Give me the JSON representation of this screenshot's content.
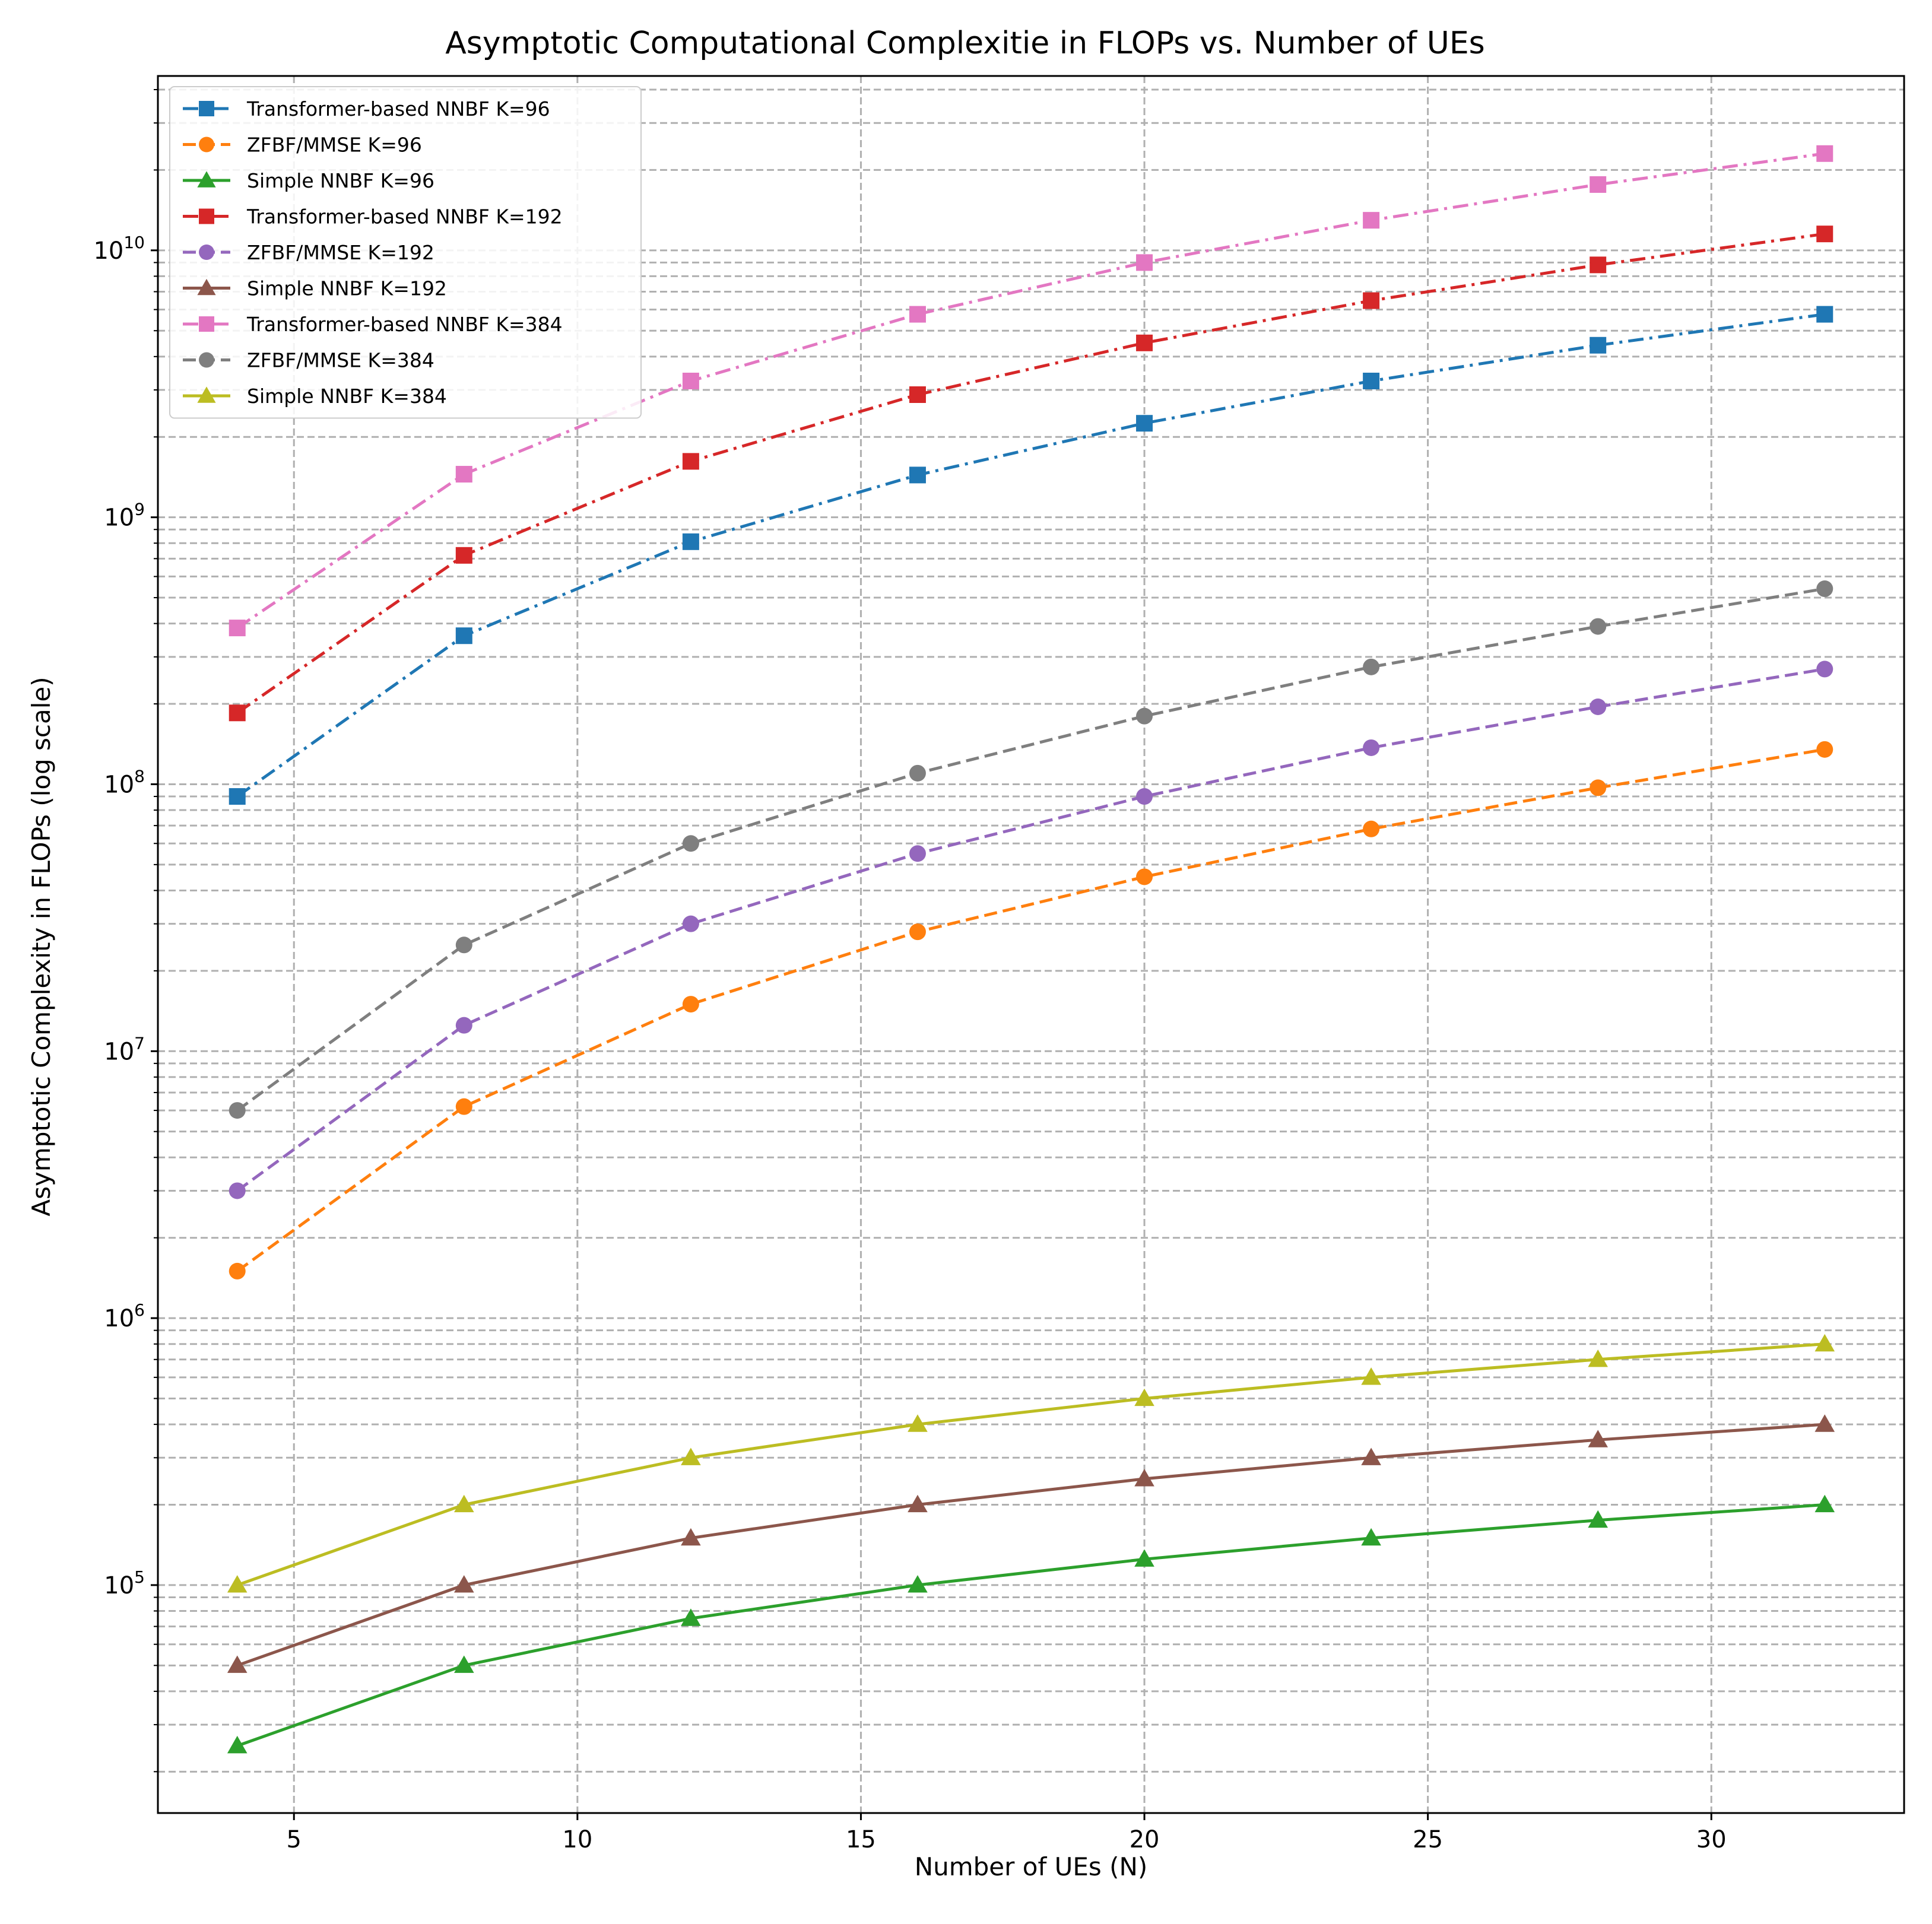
{
  "chart_data": {
    "type": "line",
    "title": "Asymptotic Computational Complexitie in FLOPs vs. Number of UEs",
    "xlabel": "Number of UEs (N)",
    "ylabel": "Asymptotic Complexity in FLOPs (log scale)",
    "yscale": "log",
    "xlim": [
      2.6,
      33.4
    ],
    "ylim": [
      14000,
      45000000000
    ],
    "grid": true,
    "legend_position": "top-left",
    "x": [
      4,
      8,
      12,
      16,
      20,
      24,
      28,
      32
    ],
    "xticks": [
      5,
      10,
      15,
      20,
      25,
      30
    ],
    "xtick_labels": [
      "5",
      "10",
      "15",
      "20",
      "25",
      "30"
    ],
    "yticks": [
      {
        "value": 100000,
        "base": "10",
        "exp": "5"
      },
      {
        "value": 1000000,
        "base": "10",
        "exp": "6"
      },
      {
        "value": 10000000,
        "base": "10",
        "exp": "7"
      },
      {
        "value": 100000000,
        "base": "10",
        "exp": "8"
      },
      {
        "value": 1000000000,
        "base": "10",
        "exp": "9"
      },
      {
        "value": 10000000000,
        "base": "10",
        "exp": "10"
      }
    ],
    "series": [
      {
        "name": "Transformer-based NNBF K=96",
        "color": "#1f77b4",
        "marker": "square",
        "linestyle": "dashdot",
        "values": [
          90000000,
          360000000,
          810000000,
          1440000000,
          2250000000,
          3240000000,
          4410000000,
          5760000000
        ]
      },
      {
        "name": "ZFBF/MMSE K=96",
        "color": "#ff7f0e",
        "marker": "circle",
        "linestyle": "dashed",
        "values": [
          1500000,
          6200000,
          15000000,
          28000000,
          45000000,
          68000000,
          97000000,
          135000000
        ]
      },
      {
        "name": "Simple NNBF K=96",
        "color": "#2ca02c",
        "marker": "triangle",
        "linestyle": "solid",
        "values": [
          25000,
          50000,
          75000,
          100000,
          125000,
          150000,
          175000,
          200000
        ]
      },
      {
        "name": "Transformer-based NNBF K=192",
        "color": "#d62728",
        "marker": "square",
        "linestyle": "dashdot",
        "values": [
          185000000,
          720000000,
          1620000000,
          2880000000,
          4500000000,
          6480000000,
          8820000000,
          11520000000
        ]
      },
      {
        "name": "ZFBF/MMSE K=192",
        "color": "#9467bd",
        "marker": "circle",
        "linestyle": "dashed",
        "values": [
          3000000,
          12500000,
          30000000,
          55000000,
          90000000,
          137000000,
          195000000,
          270000000
        ]
      },
      {
        "name": "Simple NNBF K=192",
        "color": "#8c564b",
        "marker": "triangle",
        "linestyle": "solid",
        "values": [
          50000,
          100000,
          150000,
          200000,
          250000,
          300000,
          350000,
          400000
        ]
      },
      {
        "name": "Transformer-based NNBF K=384",
        "color": "#e377c2",
        "marker": "square",
        "linestyle": "dashdot",
        "values": [
          385000000,
          1450000000,
          3240000000,
          5760000000,
          9000000000,
          12960000000,
          17640000000,
          23040000000
        ]
      },
      {
        "name": "ZFBF/MMSE K=384",
        "color": "#7f7f7f",
        "marker": "circle",
        "linestyle": "dashed",
        "values": [
          6000000,
          25000000,
          60000000,
          110000000,
          180000000,
          275000000,
          390000000,
          540000000
        ]
      },
      {
        "name": "Simple NNBF K=384",
        "color": "#bcbd22",
        "marker": "triangle",
        "linestyle": "solid",
        "values": [
          100000,
          200000,
          300000,
          400000,
          500000,
          600000,
          700000,
          800000
        ]
      }
    ]
  }
}
